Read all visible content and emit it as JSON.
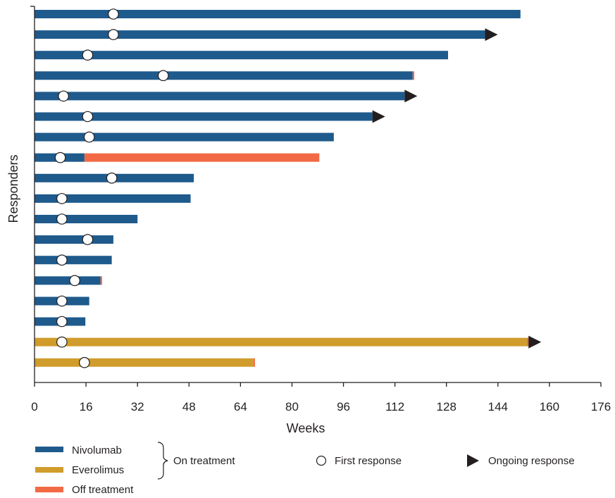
{
  "chart_data": {
    "type": "bar",
    "subtype": "swimmer",
    "orientation": "horizontal",
    "xlabel": "Weeks",
    "ylabel": "Responders",
    "xlim": [
      0,
      176
    ],
    "xticks": [
      0,
      16,
      32,
      48,
      64,
      80,
      96,
      112,
      128,
      144,
      160,
      176
    ],
    "grid": false,
    "colors": {
      "nivolumab": "#1f5a8c",
      "everolimus": "#d09c2c",
      "off_treatment": "#f26a45",
      "marker_edge": "#231f20",
      "arrow": "#231f20"
    },
    "rows": [
      {
        "drug": "nivolumab",
        "on_end": 151,
        "off_end": 151,
        "first_response": 24.5,
        "ongoing": false
      },
      {
        "drug": "nivolumab",
        "on_end": 140,
        "off_end": 140,
        "first_response": 24.5,
        "ongoing": true
      },
      {
        "drug": "nivolumab",
        "on_end": 128.5,
        "off_end": 128.5,
        "first_response": 16.5,
        "ongoing": false
      },
      {
        "drug": "nivolumab",
        "on_end": 117.5,
        "off_end": 118,
        "first_response": 40,
        "ongoing": false
      },
      {
        "drug": "nivolumab",
        "on_end": 115,
        "off_end": 115,
        "first_response": 9,
        "ongoing": true
      },
      {
        "drug": "nivolumab",
        "on_end": 105,
        "off_end": 105,
        "first_response": 16.5,
        "ongoing": true
      },
      {
        "drug": "nivolumab",
        "on_end": 93,
        "off_end": 93,
        "first_response": 17,
        "ongoing": false
      },
      {
        "drug": "nivolumab",
        "on_end": 15.5,
        "off_end": 88.5,
        "first_response": 8,
        "ongoing": false
      },
      {
        "drug": "nivolumab",
        "on_end": 49.5,
        "off_end": 49.5,
        "first_response": 24,
        "ongoing": false
      },
      {
        "drug": "nivolumab",
        "on_end": 48.5,
        "off_end": 48.5,
        "first_response": 8.5,
        "ongoing": false
      },
      {
        "drug": "nivolumab",
        "on_end": 32,
        "off_end": 32,
        "first_response": 8.5,
        "ongoing": false
      },
      {
        "drug": "nivolumab",
        "on_end": 24.5,
        "off_end": 24.5,
        "first_response": 16.5,
        "ongoing": false
      },
      {
        "drug": "nivolumab",
        "on_end": 24,
        "off_end": 24,
        "first_response": 8.5,
        "ongoing": false
      },
      {
        "drug": "nivolumab",
        "on_end": 20.5,
        "off_end": 21,
        "first_response": 12.5,
        "ongoing": false
      },
      {
        "drug": "nivolumab",
        "on_end": 17,
        "off_end": 17,
        "first_response": 8.5,
        "ongoing": false
      },
      {
        "drug": "nivolumab",
        "on_end": 15.8,
        "off_end": 15.8,
        "first_response": 8.5,
        "ongoing": false
      },
      {
        "drug": "everolimus",
        "on_end": 153,
        "off_end": 153.5,
        "first_response": 8.5,
        "ongoing": true
      },
      {
        "drug": "everolimus",
        "on_end": 68,
        "off_end": 68.5,
        "first_response": 15.5,
        "ongoing": false
      }
    ],
    "legend": {
      "nivolumab": "Nivolumab",
      "everolimus": "Everolimus",
      "off_treatment": "Off treatment",
      "on_treatment": "On treatment",
      "first_response": "First response",
      "ongoing_response": "Ongoing response"
    }
  }
}
